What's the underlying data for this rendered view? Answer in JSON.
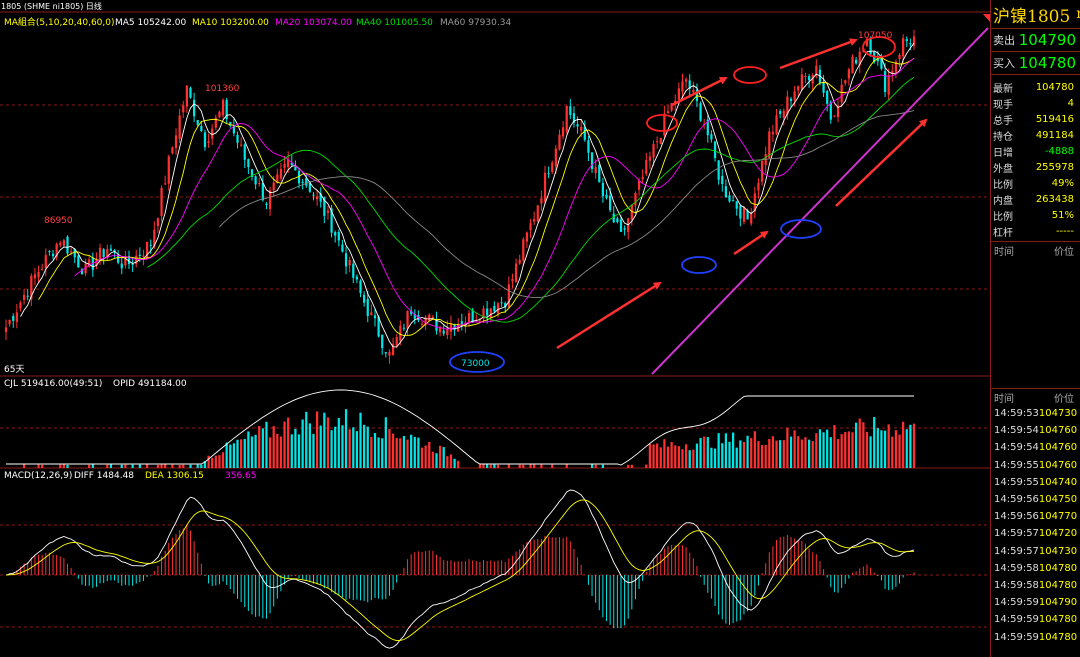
{
  "header": {
    "symbol_code": "1805 (SHME ni1805) 日线",
    "ma_label": "MA組合(5,10,20,40,60,0)",
    "ma5": "MA5 105242.00",
    "ma10": "MA10 103200.00",
    "ma20": "MA20 103074.00",
    "ma40": "MA40 101005.50",
    "ma60": "MA60 97930.34"
  },
  "colors": {
    "up": "#ff3030",
    "down": "#00e5e5",
    "ma5": "#ffffff",
    "ma10": "#ffff00",
    "ma20": "#ff00ff",
    "ma40": "#00dd00",
    "ma60": "#888888",
    "grid": "#8b1a1a",
    "trend": "#cc33cc",
    "circle_red": "#ff2020",
    "circle_blue": "#2040ff",
    "arrow": "#ff3030"
  },
  "annotations": {
    "price_101360": "101360",
    "price_86950": "86950",
    "price_73000": "73000",
    "price_107050": "107050",
    "days_label": "65天"
  },
  "volume_panel": {
    "cjl": "CJL  519416.00(49:51)",
    "opid": "OPID  491184.00"
  },
  "macd_panel": {
    "label": "MACD(12,26,9)",
    "diff": "DIFF  1484.48",
    "dea": "DEA  1306.15",
    "macd": "356.65"
  },
  "quote": {
    "title": "沪镍1805",
    "title_suffix": "m",
    "sell_label": "卖出",
    "sell_price": "104790",
    "buy_label": "买入",
    "buy_price": "104780",
    "stats": [
      {
        "label": "最新",
        "value": "104780",
        "color": "#ffff00"
      },
      {
        "label": "现手",
        "value": "4",
        "color": "#ffff00"
      },
      {
        "label": "总手",
        "value": "519416",
        "color": "#ffff00"
      },
      {
        "label": "持仓",
        "value": "491184",
        "color": "#ffff00"
      },
      {
        "label": "日增",
        "value": "-4888",
        "color": "#00ff00"
      },
      {
        "label": "外盘",
        "value": "255978",
        "color": "#ffff00"
      },
      {
        "label": "比例",
        "value": "49%",
        "color": "#ffff00"
      },
      {
        "label": "内盘",
        "value": "263438",
        "color": "#ffff00"
      },
      {
        "label": "比例",
        "value": "51%",
        "color": "#ffff00"
      },
      {
        "label": "杠杆",
        "value": "-----",
        "color": "#ffff00"
      }
    ],
    "col_time": "时间",
    "col_price": "价位"
  },
  "ticks": [
    {
      "time": "14:59:53",
      "price": "104730"
    },
    {
      "time": "14:59:54",
      "price": "104760"
    },
    {
      "time": "14:59:54",
      "price": "104760"
    },
    {
      "time": "14:59:55",
      "price": "104760"
    },
    {
      "time": "14:59:55",
      "price": "104740"
    },
    {
      "time": "14:59:56",
      "price": "104750"
    },
    {
      "time": "14:59:56",
      "price": "104770"
    },
    {
      "time": "14:59:57",
      "price": "104720"
    },
    {
      "time": "14:59:57",
      "price": "104730"
    },
    {
      "time": "14:59:58",
      "price": "104780"
    },
    {
      "time": "14:59:58",
      "price": "104780"
    },
    {
      "time": "14:59:59",
      "price": "104790"
    },
    {
      "time": "14:59:59",
      "price": "104780"
    },
    {
      "time": "14:59:59",
      "price": "104780"
    }
  ],
  "chart_data": {
    "type": "candlestick",
    "ylim": [
      71000,
      109500
    ],
    "anchors": [
      [
        0,
        76000
      ],
      [
        8,
        81500
      ],
      [
        15,
        85500
      ],
      [
        22,
        82000
      ],
      [
        28,
        84500
      ],
      [
        33,
        82500
      ],
      [
        40,
        85000
      ],
      [
        47,
        97000
      ],
      [
        50,
        101360
      ],
      [
        55,
        96000
      ],
      [
        60,
        99500
      ],
      [
        66,
        94000
      ],
      [
        72,
        89500
      ],
      [
        78,
        93500
      ],
      [
        84,
        91000
      ],
      [
        90,
        87000
      ],
      [
        98,
        79500
      ],
      [
        106,
        73000
      ],
      [
        112,
        78000
      ],
      [
        120,
        76000
      ],
      [
        128,
        77000
      ],
      [
        138,
        79000
      ],
      [
        146,
        88000
      ],
      [
        155,
        99500
      ],
      [
        160,
        96000
      ],
      [
        165,
        90000
      ],
      [
        170,
        85500
      ],
      [
        176,
        92000
      ],
      [
        183,
        99000
      ],
      [
        188,
        102500
      ],
      [
        193,
        98000
      ],
      [
        198,
        91000
      ],
      [
        205,
        87500
      ],
      [
        211,
        96500
      ],
      [
        218,
        101500
      ],
      [
        224,
        104000
      ],
      [
        228,
        98500
      ],
      [
        233,
        103500
      ],
      [
        238,
        107050
      ],
      [
        243,
        102000
      ],
      [
        248,
        106500
      ]
    ]
  }
}
